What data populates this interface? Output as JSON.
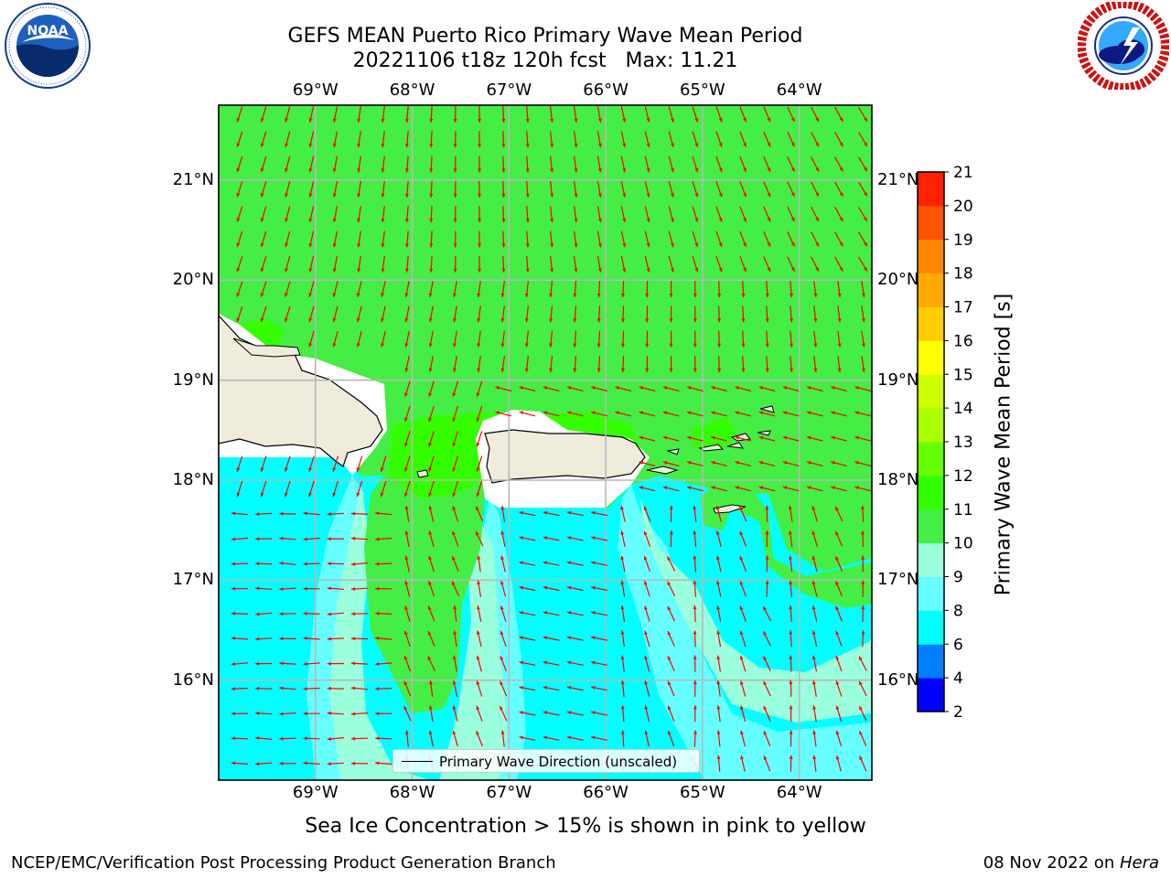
{
  "header": {
    "title_line1": "GEFS MEAN Puerto Rico Primary Wave Mean Period",
    "title_line2": "20221106 t18z 120h fcst   Max: 11.21"
  },
  "logos": {
    "left": {
      "name": "noaa-logo",
      "text": "NOAA",
      "ring_text": "NATIONAL OCEANIC AND ATMOSPHERIC ADMINISTRATION · U.S. DEPARTMENT OF COMMERCE"
    },
    "right": {
      "name": "nws-logo",
      "ring_text": "NATIONAL WEATHER SERVICE"
    }
  },
  "map": {
    "lon_labels": [
      "69°W",
      "68°W",
      "67°W",
      "66°W",
      "65°W",
      "64°W"
    ],
    "lat_labels": [
      "21°N",
      "20°N",
      "19°N",
      "18°N",
      "17°N",
      "16°N"
    ],
    "lon_range": [
      -70.0,
      -63.25
    ],
    "lat_range": [
      15.0,
      21.75
    ],
    "arrow_color": "#ff0000",
    "coast_color": "#000000",
    "land_color": "#efecdc",
    "gridlines": true
  },
  "legend": {
    "label": "Primary Wave Direction (unscaled)",
    "placement": "lower-center"
  },
  "colorbar": {
    "title": "Primary Wave Mean Period [s]",
    "tick_labels": [
      "2",
      "4",
      "6",
      "8",
      "9",
      "10",
      "11",
      "12",
      "13",
      "14",
      "15",
      "16",
      "17",
      "18",
      "19",
      "20",
      "21"
    ],
    "levels": [
      2,
      4,
      6,
      8,
      9,
      10,
      11,
      12,
      13,
      14,
      15,
      16,
      17,
      18,
      19,
      20,
      21
    ],
    "colors": [
      "#0000ff",
      "#0080ff",
      "#00ffff",
      "#66ffff",
      "#99ffdd",
      "#44ee44",
      "#33ff00",
      "#66ff00",
      "#aaff00",
      "#ccff00",
      "#ffff00",
      "#ffcc00",
      "#ffaa00",
      "#ff8800",
      "#ff5500",
      "#ff2200"
    ]
  },
  "notes": {
    "sea_ice": "Sea Ice Concentration > 15% is shown in pink to yellow",
    "producer": "NCEP/EMC/Verification Post Processing Product Generation Branch",
    "date": "08 Nov 2022 on ",
    "host": "Hera"
  }
}
